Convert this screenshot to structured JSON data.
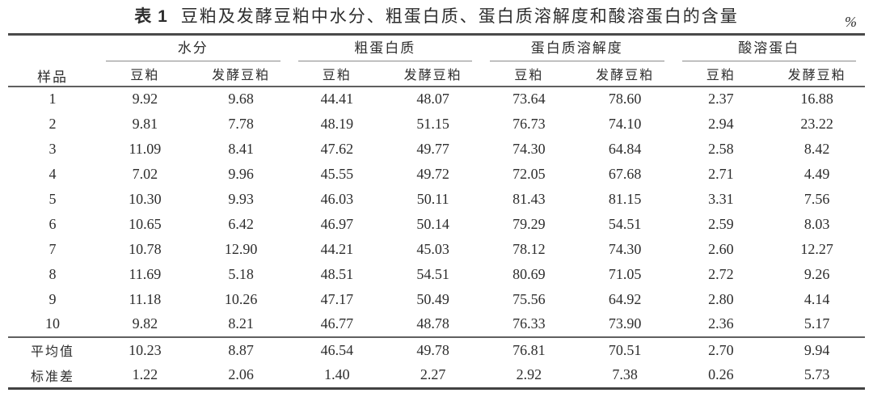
{
  "caption": {
    "label": "表 1",
    "text": "豆粕及发酵豆粕中水分、粗蛋白质、蛋白质溶解度和酸溶蛋白的含量",
    "unit": "%"
  },
  "table": {
    "sample_header": "样品",
    "groups": [
      {
        "label": "水分",
        "sub": [
          "豆粕",
          "发酵豆粕"
        ]
      },
      {
        "label": "粗蛋白质",
        "sub": [
          "豆粕",
          "发酵豆粕"
        ]
      },
      {
        "label": "蛋白质溶解度",
        "sub": [
          "豆粕",
          "发酵豆粕"
        ]
      },
      {
        "label": "酸溶蛋白",
        "sub": [
          "豆粕",
          "发酵豆粕"
        ]
      }
    ],
    "rows": [
      {
        "sample": "1",
        "values": [
          "9.92",
          "9.68",
          "44.41",
          "48.07",
          "73.64",
          "78.60",
          "2.37",
          "16.88"
        ]
      },
      {
        "sample": "2",
        "values": [
          "9.81",
          "7.78",
          "48.19",
          "51.15",
          "76.73",
          "74.10",
          "2.94",
          "23.22"
        ]
      },
      {
        "sample": "3",
        "values": [
          "11.09",
          "8.41",
          "47.62",
          "49.77",
          "74.30",
          "64.84",
          "2.58",
          "8.42"
        ]
      },
      {
        "sample": "4",
        "values": [
          "7.02",
          "9.96",
          "45.55",
          "49.72",
          "72.05",
          "67.68",
          "2.71",
          "4.49"
        ]
      },
      {
        "sample": "5",
        "values": [
          "10.30",
          "9.93",
          "46.03",
          "50.11",
          "81.43",
          "81.15",
          "3.31",
          "7.56"
        ]
      },
      {
        "sample": "6",
        "values": [
          "10.65",
          "6.42",
          "46.97",
          "50.14",
          "79.29",
          "54.51",
          "2.59",
          "8.03"
        ]
      },
      {
        "sample": "7",
        "values": [
          "10.78",
          "12.90",
          "44.21",
          "45.03",
          "78.12",
          "74.30",
          "2.60",
          "12.27"
        ]
      },
      {
        "sample": "8",
        "values": [
          "11.69",
          "5.18",
          "48.51",
          "54.51",
          "80.69",
          "71.05",
          "2.72",
          "9.26"
        ]
      },
      {
        "sample": "9",
        "values": [
          "11.18",
          "10.26",
          "47.17",
          "50.49",
          "75.56",
          "64.92",
          "2.80",
          "4.14"
        ]
      },
      {
        "sample": "10",
        "values": [
          "9.82",
          "8.21",
          "46.77",
          "48.78",
          "76.33",
          "73.90",
          "2.36",
          "5.17"
        ]
      }
    ],
    "summary_rows": [
      {
        "sample": "平均值",
        "values": [
          "10.23",
          "8.87",
          "46.54",
          "49.78",
          "76.81",
          "70.51",
          "2.70",
          "9.94"
        ]
      },
      {
        "sample": "标准差",
        "values": [
          "1.22",
          "2.06",
          "1.40",
          "2.27",
          "2.92",
          "7.38",
          "0.26",
          "5.73"
        ]
      }
    ]
  }
}
